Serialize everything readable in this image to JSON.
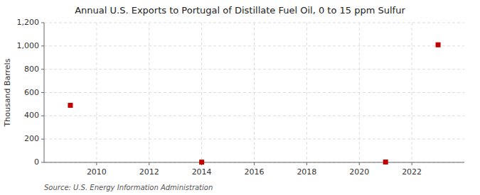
{
  "chart_data": {
    "type": "scatter",
    "title": "Annual U.S. Exports to Portugal of Distillate Fuel Oil, 0 to 15 ppm Sulfur",
    "y_label": "Thousand Barrels",
    "source": "Source: U.S. Energy Information Administration",
    "x": [
      2009,
      2014,
      2021,
      2023
    ],
    "values": [
      490,
      2,
      3,
      1010
    ],
    "color": "#c00000",
    "marker": "square",
    "xlim": [
      2008.0,
      2024.0
    ],
    "xticks": [
      2010,
      2012,
      2014,
      2016,
      2018,
      2020,
      2022
    ],
    "ylim": [
      0,
      1200
    ],
    "yticks": [
      0,
      200,
      400,
      600,
      800,
      {
        "value": 1000,
        "label": "1,000"
      },
      {
        "value": 1200,
        "label": "1,200"
      }
    ],
    "grid": true
  }
}
